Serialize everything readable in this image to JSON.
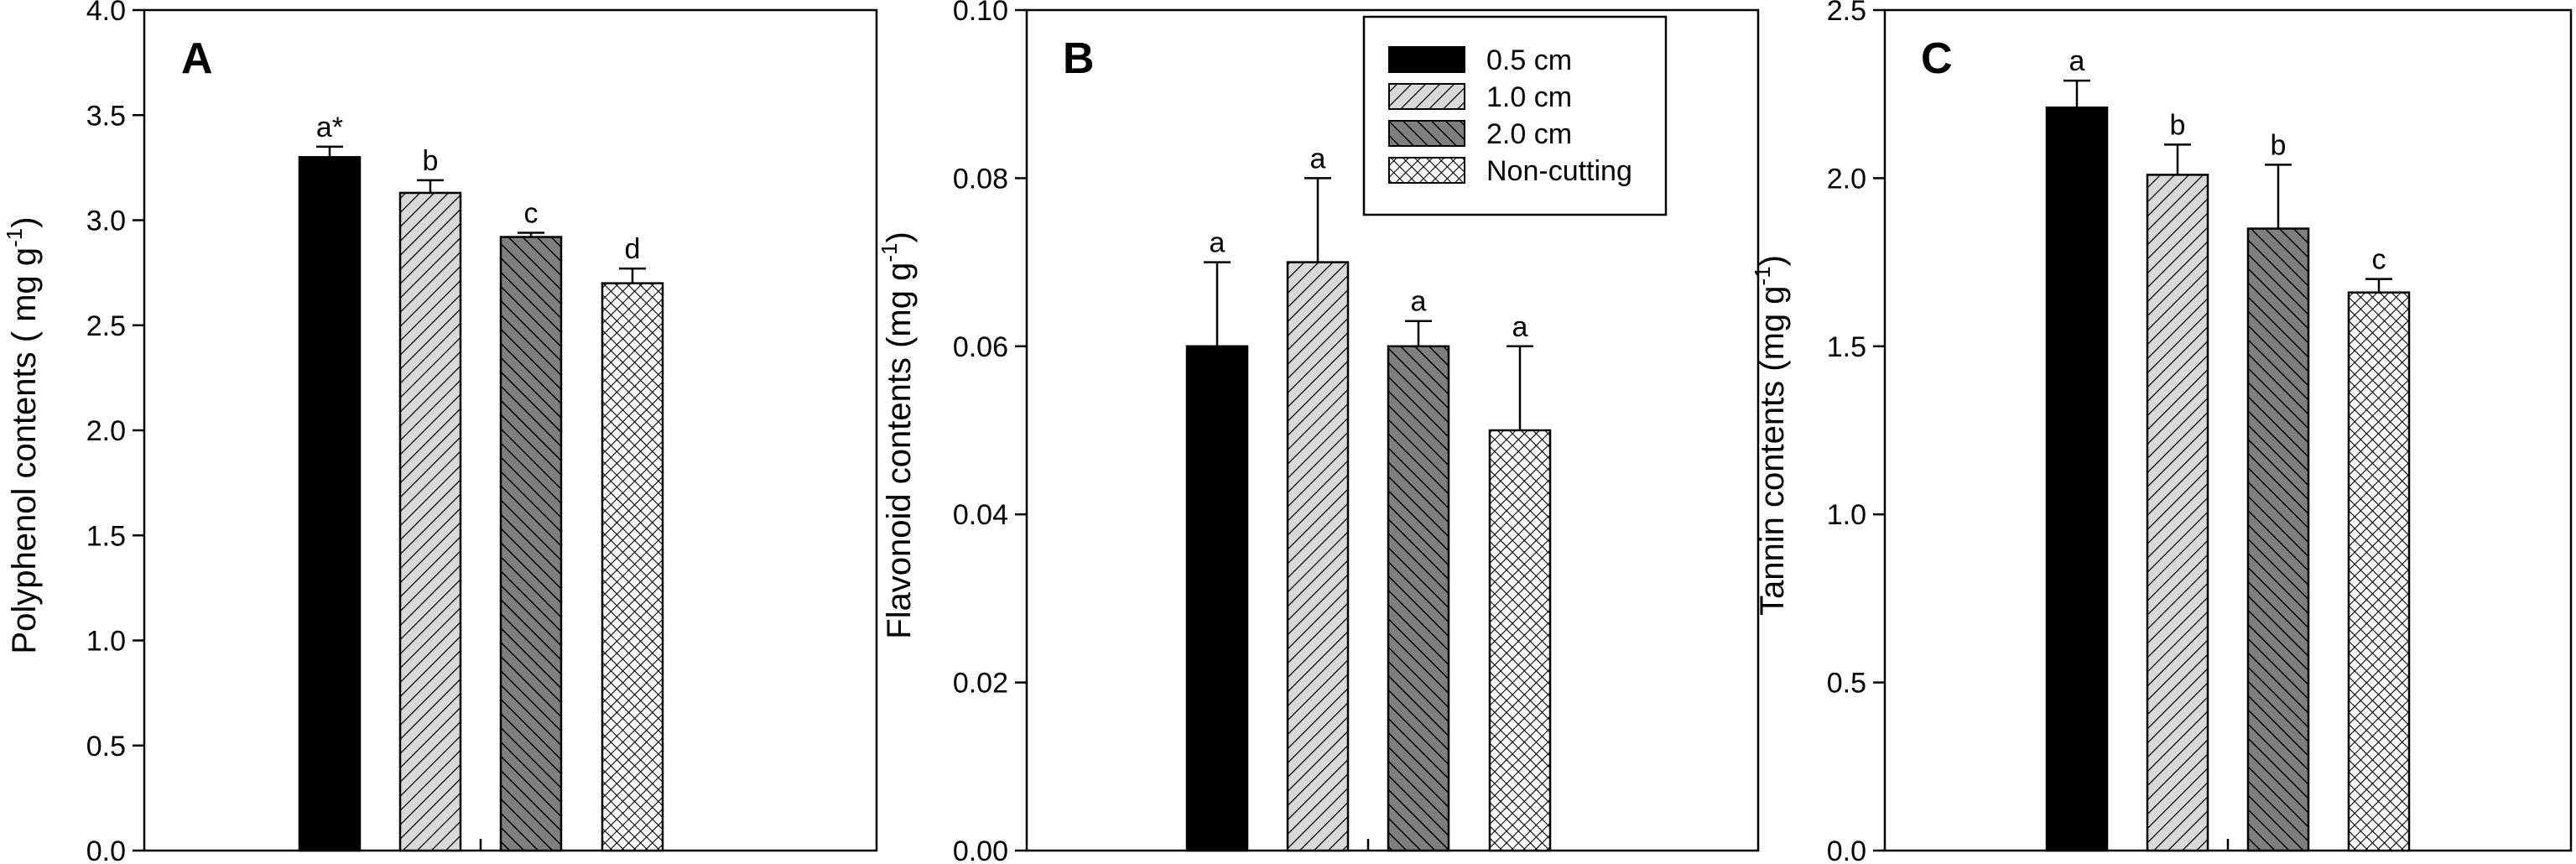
{
  "chart_data": [
    {
      "type": "bar",
      "panel_label": "A",
      "title": "",
      "xlabel": "",
      "ylabel": "Polyphenol contents ( mg g",
      "ylabel_superscript": "-1",
      "ylabel_suffix": ")",
      "ylim": [
        0,
        4.0
      ],
      "yticks": [
        "0.0",
        "0.5",
        "1.0",
        "1.5",
        "2.0",
        "2.5",
        "3.0",
        "3.5",
        "4.0"
      ],
      "categories": [
        "0.5 cm",
        "1.0 cm",
        "2.0 cm",
        "Non-cutting"
      ],
      "values": [
        3.3,
        3.13,
        2.92,
        2.7
      ],
      "errors": [
        0.05,
        0.06,
        0.02,
        0.07
      ],
      "significance_labels": [
        "a*",
        "b",
        "c",
        "d"
      ]
    },
    {
      "type": "bar",
      "panel_label": "B",
      "title": "",
      "xlabel": "",
      "ylabel": "Flavonoid contents (mg g",
      "ylabel_superscript": "-1",
      "ylabel_suffix": ")",
      "ylim": [
        0,
        0.1
      ],
      "yticks": [
        "0.00",
        "0.02",
        "0.04",
        "0.06",
        "0.08",
        "0.10"
      ],
      "categories": [
        "0.5 cm",
        "1.0 cm",
        "2.0 cm",
        "Non-cutting"
      ],
      "values": [
        0.06,
        0.07,
        0.06,
        0.05
      ],
      "errors": [
        0.01,
        0.01,
        0.003,
        0.01
      ],
      "significance_labels": [
        "a",
        "a",
        "a",
        "a"
      ],
      "legend": {
        "position": "top-right",
        "entries": [
          "0.5 cm",
          "1.0 cm",
          "2.0 cm",
          "Non-cutting"
        ]
      }
    },
    {
      "type": "bar",
      "panel_label": "C",
      "title": "",
      "xlabel": "",
      "ylabel": "Tannin contents (mg g",
      "ylabel_superscript": "-1",
      "ylabel_suffix": ")",
      "ylim": [
        0,
        2.5
      ],
      "yticks": [
        "0.0",
        "0.5",
        "1.0",
        "1.5",
        "2.0",
        "2.5"
      ],
      "categories": [
        "0.5 cm",
        "1.0 cm",
        "2.0 cm",
        "Non-cutting"
      ],
      "values": [
        2.21,
        2.01,
        1.85,
        1.66
      ],
      "errors": [
        0.08,
        0.09,
        0.19,
        0.04
      ],
      "significance_labels": [
        "a",
        "b",
        "b",
        "c"
      ]
    }
  ],
  "fill_patterns": [
    "solid-black",
    "light-diagonal-hatch",
    "dark-diagonal-hatch",
    "crosshatch"
  ],
  "colors": {
    "axis": "#000000",
    "solid": "#000000",
    "light_hatch_bg": "#d9d9d9",
    "dark_hatch_bg": "#7f7f7f",
    "crosshatch_bg": "#ffffff"
  }
}
